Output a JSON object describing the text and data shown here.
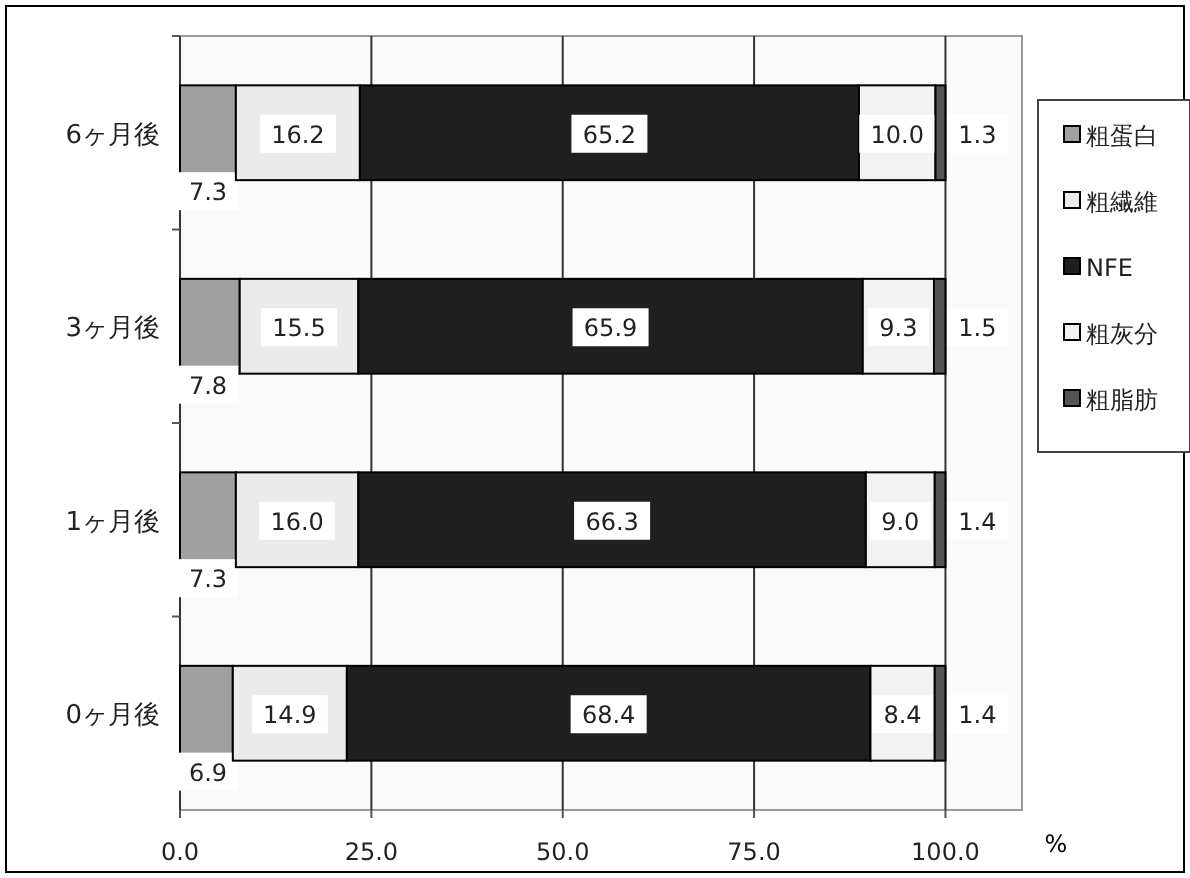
{
  "chart_data": {
    "type": "bar",
    "orientation": "horizontal",
    "stacked": true,
    "categories": [
      "6ヶ月後",
      "3ヶ月後",
      "1ヶ月後",
      "0ヶ月後"
    ],
    "series": [
      {
        "name": "粗蛋白",
        "color": "#a0a0a0",
        "values": [
          7.3,
          7.8,
          7.3,
          6.9
        ],
        "value_labels": [
          "7.3",
          "7.8",
          "7.3",
          "6.9"
        ]
      },
      {
        "name": "粗繊維",
        "color": "#ebebeb",
        "values": [
          16.2,
          15.5,
          16.0,
          14.9
        ],
        "value_labels": [
          "16.2",
          "15.5",
          "16.0",
          "14.9"
        ]
      },
      {
        "name": "NFE",
        "color": "#1f1f1f",
        "values": [
          65.2,
          65.9,
          66.3,
          68.4
        ],
        "value_labels": [
          "65.2",
          "65.9",
          "66.3",
          "68.4"
        ]
      },
      {
        "name": "粗灰分",
        "color": "#f2f2f2",
        "values": [
          10.0,
          9.3,
          9.0,
          8.4
        ],
        "value_labels": [
          "10.0",
          "9.3",
          "9.0",
          "8.4"
        ]
      },
      {
        "name": "粗脂肪",
        "color": "#555555",
        "values": [
          1.3,
          1.5,
          1.4,
          1.4
        ],
        "value_labels": [
          "1.3",
          "1.5",
          "1.4",
          "1.4"
        ]
      }
    ],
    "xlabel": "%",
    "xlim": [
      0,
      110
    ],
    "xticks": [
      {
        "value": 0,
        "label": "0.0"
      },
      {
        "value": 25,
        "label": "25.0"
      },
      {
        "value": 50,
        "label": "50.0"
      },
      {
        "value": 75,
        "label": "75.0"
      },
      {
        "value": 100,
        "label": "100.0"
      }
    ],
    "grid": "x",
    "legend": "right"
  }
}
